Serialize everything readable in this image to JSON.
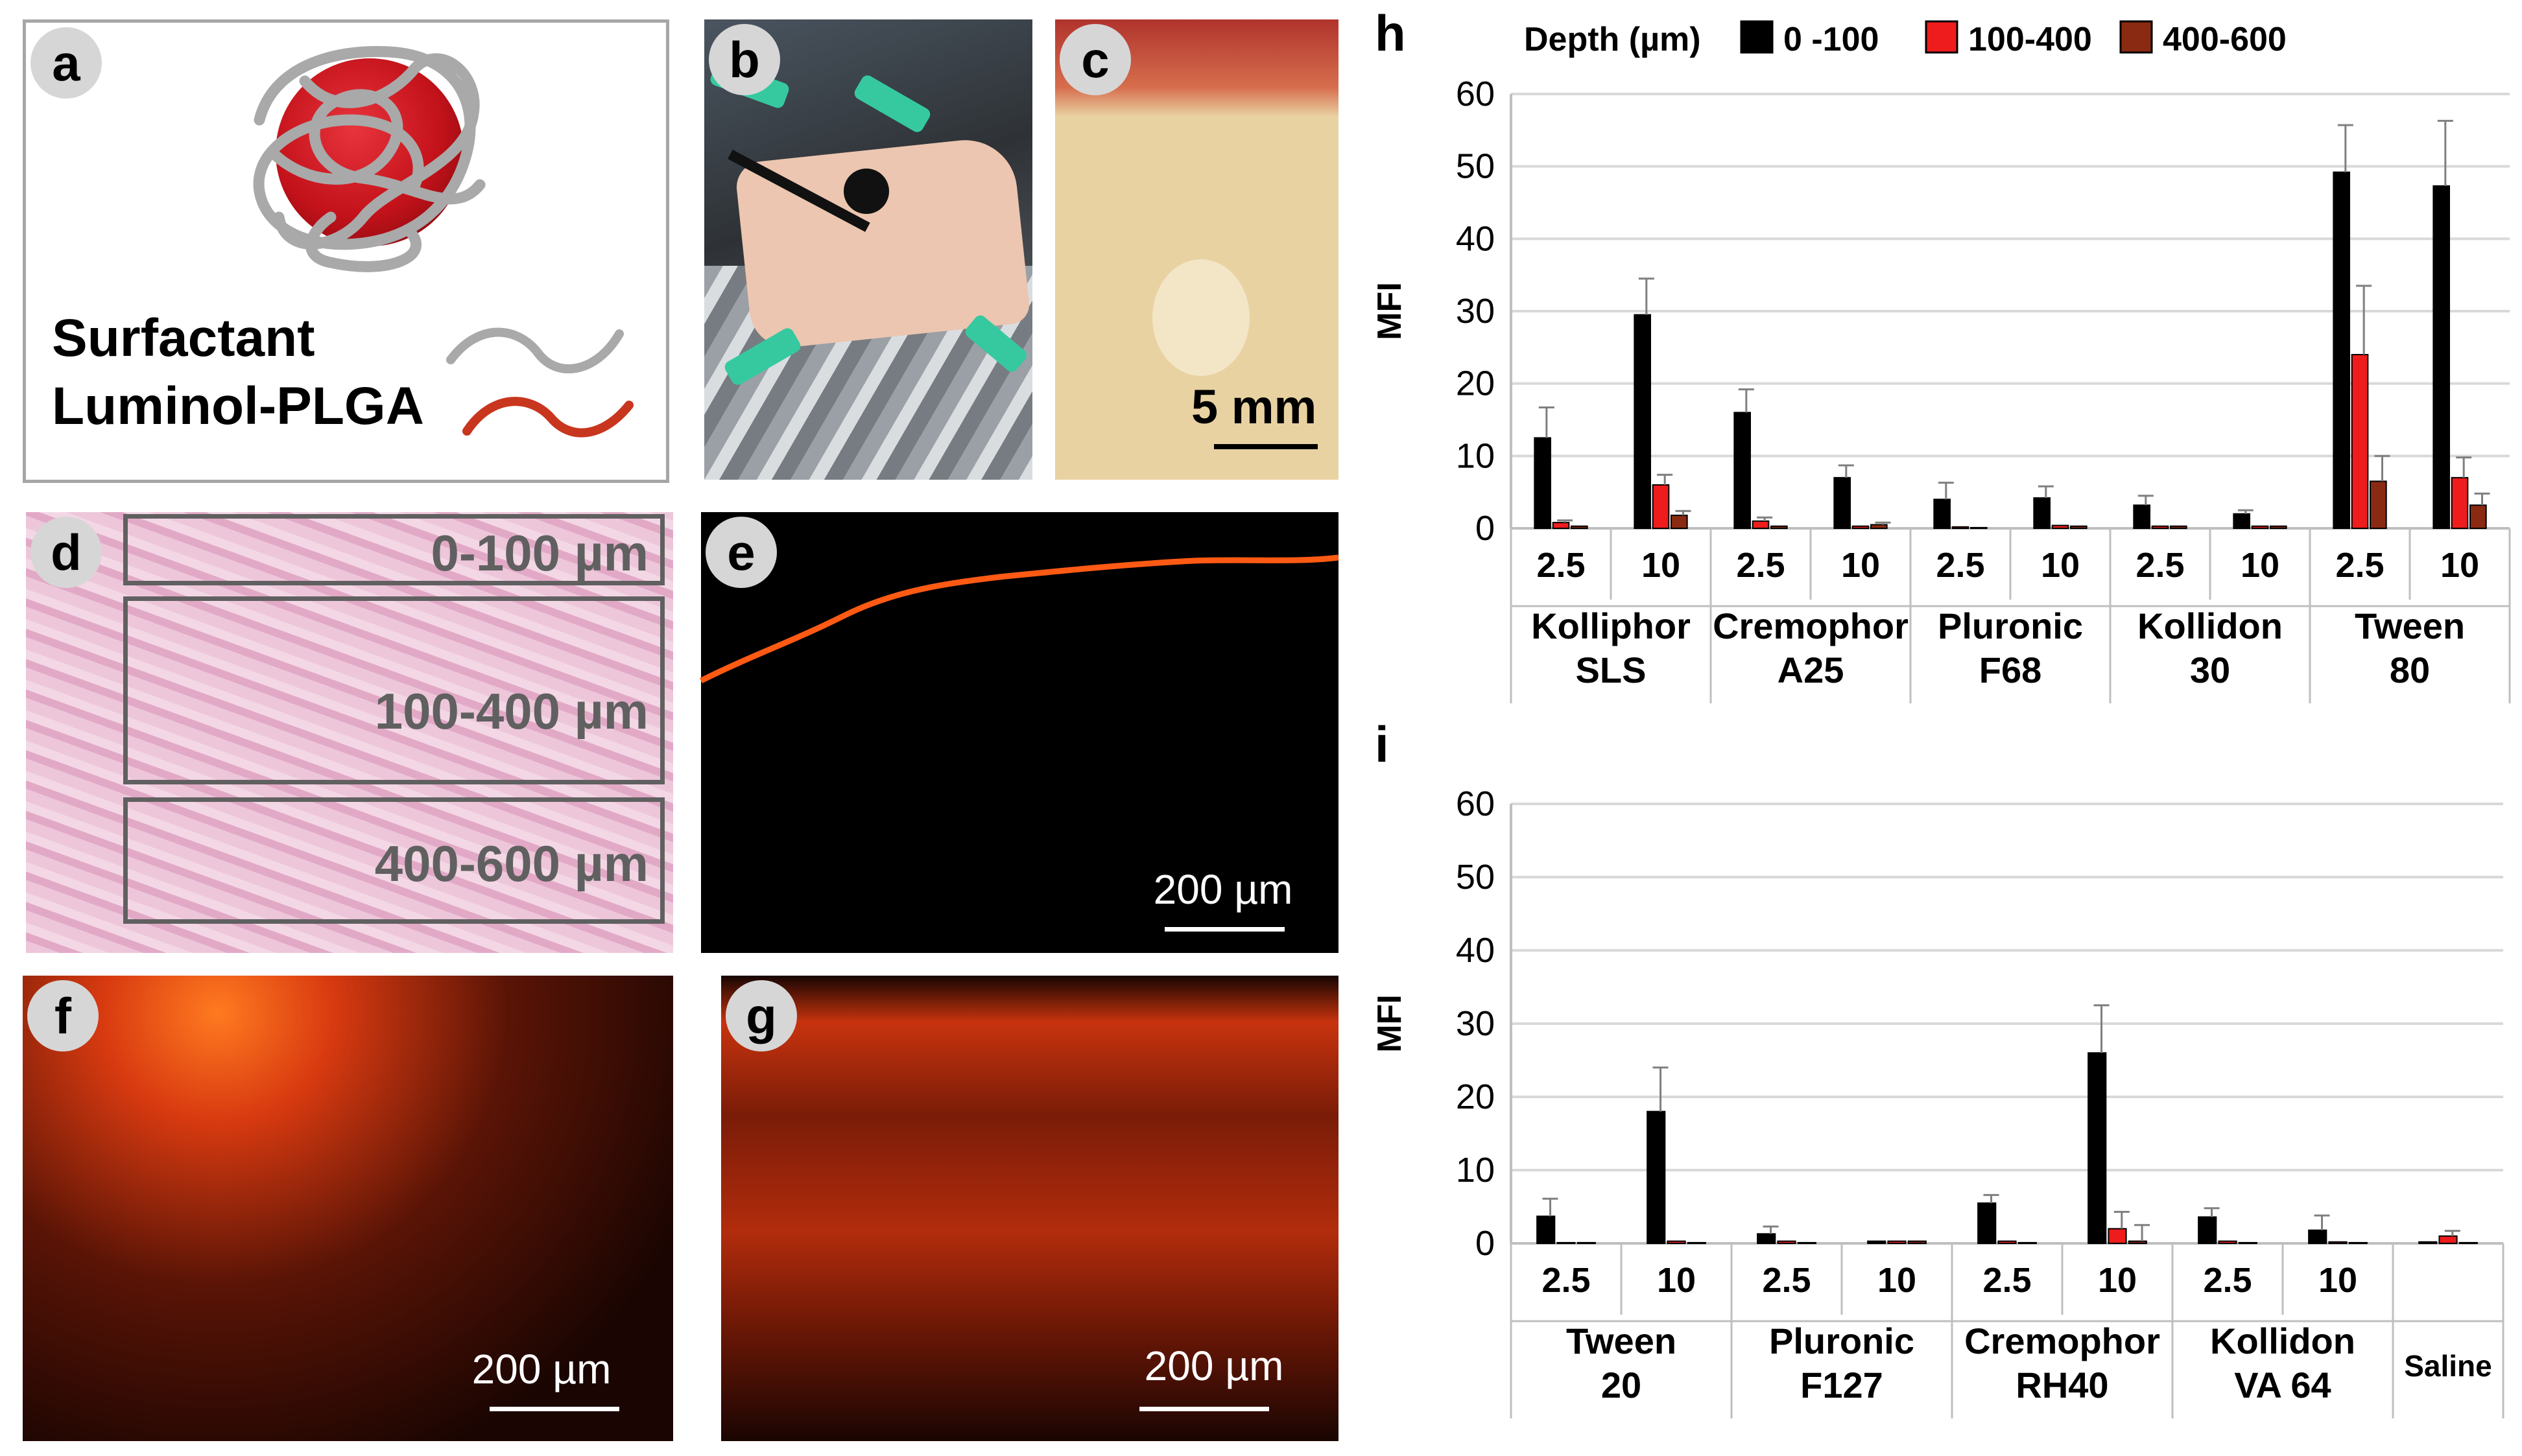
{
  "panels": {
    "a": {
      "label": "a",
      "surfactant_label": "Surfactant",
      "polymer_label": "Luminol-PLGA"
    },
    "b": {
      "label": "b"
    },
    "c": {
      "label": "c",
      "scale": "5 mm"
    },
    "d": {
      "label": "d",
      "regions": [
        "0-100 µm",
        "100-400 µm",
        "400-600 µm"
      ]
    },
    "e": {
      "label": "e",
      "scale": "200 µm"
    },
    "f": {
      "label": "f",
      "scale": "200 µm"
    },
    "g": {
      "label": "g",
      "scale": "200 µm"
    }
  },
  "colors": {
    "depth_0_100": "#000000",
    "depth_100_400": "#ee1c1c",
    "depth_400_600": "#8b2a12"
  },
  "chart_data": [
    {
      "panel": "h",
      "type": "bar",
      "ylabel": "MFI",
      "ylim": [
        0,
        60
      ],
      "yticks": [
        0,
        10,
        20,
        30,
        40,
        50,
        60
      ],
      "legend_title": "Depth (µm)",
      "series_names": [
        "0 -100",
        "100-400",
        "400-600"
      ],
      "groups": [
        {
          "name": [
            "Kolliphor",
            "SLS"
          ],
          "bars": [
            {
              "conc": "2.5",
              "values": [
                12.5,
                0.8,
                0.3
              ],
              "errors": [
                4.2,
                0.3,
                0.1
              ]
            },
            {
              "conc": "10",
              "values": [
                29.5,
                6.0,
                1.8
              ],
              "errors": [
                5.0,
                1.4,
                0.6
              ]
            }
          ]
        },
        {
          "name": [
            "Cremophor",
            "A25"
          ],
          "bars": [
            {
              "conc": "2.5",
              "values": [
                16.0,
                1.0,
                0.3
              ],
              "errors": [
                3.2,
                0.5,
                0.1
              ]
            },
            {
              "conc": "10",
              "values": [
                7.0,
                0.3,
                0.5
              ],
              "errors": [
                1.7,
                0.2,
                0.3
              ]
            }
          ]
        },
        {
          "name": [
            "Pluronic",
            "F68"
          ],
          "bars": [
            {
              "conc": "2.5",
              "values": [
                4.0,
                0.2,
                0.1
              ],
              "errors": [
                2.3,
                0.1,
                0.1
              ]
            },
            {
              "conc": "10",
              "values": [
                4.2,
                0.4,
                0.3
              ],
              "errors": [
                1.6,
                0.2,
                0.1
              ]
            }
          ]
        },
        {
          "name": [
            "Kollidon",
            "30"
          ],
          "bars": [
            {
              "conc": "2.5",
              "values": [
                3.2,
                0.3,
                0.3
              ],
              "errors": [
                1.3,
                0.1,
                0.1
              ]
            },
            {
              "conc": "10",
              "values": [
                2.0,
                0.3,
                0.3
              ],
              "errors": [
                0.5,
                0.1,
                0.1
              ]
            }
          ]
        },
        {
          "name": [
            "Tween",
            "80"
          ],
          "bars": [
            {
              "conc": "2.5",
              "values": [
                49.2,
                24.0,
                6.5
              ],
              "errors": [
                6.5,
                9.5,
                3.5
              ]
            },
            {
              "conc": "10",
              "values": [
                47.3,
                7.0,
                3.2
              ],
              "errors": [
                9.0,
                2.8,
                1.6
              ]
            }
          ]
        }
      ]
    },
    {
      "panel": "i",
      "type": "bar",
      "ylabel": "MFI",
      "ylim": [
        0,
        60
      ],
      "yticks": [
        0,
        10,
        20,
        30,
        40,
        50,
        60
      ],
      "series_names": [
        "0 -100",
        "100-400",
        "400-600"
      ],
      "groups": [
        {
          "name": [
            "Tween",
            "20"
          ],
          "bars": [
            {
              "conc": "2.5",
              "values": [
                3.7,
                0.1,
                0.1
              ],
              "errors": [
                2.4,
                0.1,
                0.1
              ]
            },
            {
              "conc": "10",
              "values": [
                18.0,
                0.3,
                0.1
              ],
              "errors": [
                6.0,
                0.1,
                0.1
              ]
            }
          ]
        },
        {
          "name": [
            "Pluronic",
            "F127"
          ],
          "bars": [
            {
              "conc": "2.5",
              "values": [
                1.3,
                0.3,
                0.1
              ],
              "errors": [
                1.0,
                0.1,
                0.1
              ]
            },
            {
              "conc": "10",
              "values": [
                0.3,
                0.3,
                0.3
              ],
              "errors": [
                0.1,
                0.1,
                0.1
              ]
            }
          ]
        },
        {
          "name": [
            "Cremophor",
            "RH40"
          ],
          "bars": [
            {
              "conc": "2.5",
              "values": [
                5.5,
                0.3,
                0.1
              ],
              "errors": [
                1.1,
                0.1,
                0.1
              ]
            },
            {
              "conc": "10",
              "values": [
                26.0,
                2.0,
                0.3
              ],
              "errors": [
                6.5,
                2.3,
                2.2
              ]
            }
          ]
        },
        {
          "name": [
            "Kollidon",
            "VA 64"
          ],
          "bars": [
            {
              "conc": "2.5",
              "values": [
                3.6,
                0.3,
                0.1
              ],
              "errors": [
                1.2,
                0.1,
                0.1
              ]
            },
            {
              "conc": "10",
              "values": [
                1.8,
                0.2,
                0.1
              ],
              "errors": [
                2.0,
                0.1,
                0.1
              ]
            }
          ]
        },
        {
          "name": [
            "Saline"
          ],
          "bars": [
            {
              "conc": "",
              "values": [
                0.2,
                1.0,
                0.1
              ],
              "errors": [
                0.1,
                0.7,
                0.1
              ]
            }
          ]
        }
      ]
    }
  ]
}
